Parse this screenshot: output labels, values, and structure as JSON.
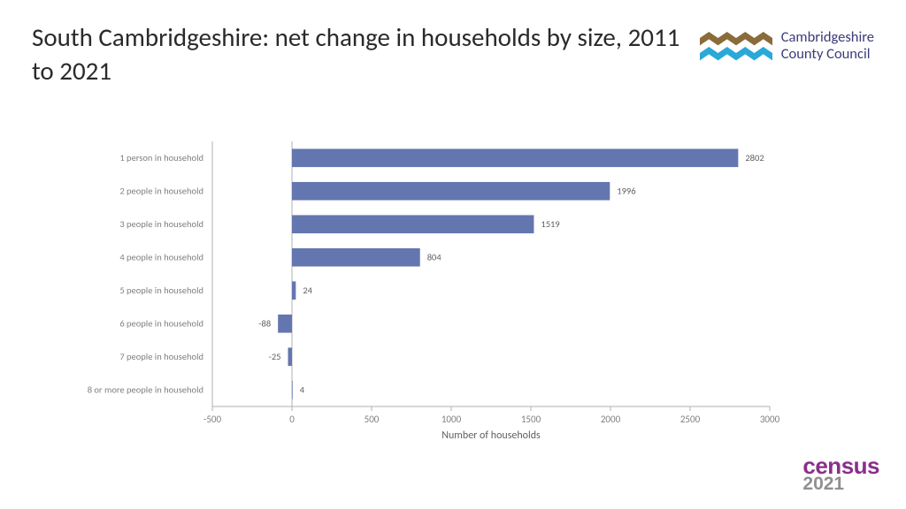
{
  "title": "South Cambridgeshire: net change in households by size, 2011 to 2021",
  "logo": {
    "line1": "Cambridgeshire",
    "line2": "County Council",
    "top_color": "#8a6b3a",
    "bottom_color": "#2aa8d8"
  },
  "chart": {
    "type": "bar-horizontal",
    "categories": [
      "1 person in household",
      "2 people in household",
      "3 people in household",
      "4 people in household",
      "5 people in household",
      "6 people in household",
      "7 people in household",
      "8 or more people in household"
    ],
    "values": [
      2802,
      1996,
      1519,
      804,
      24,
      -88,
      -25,
      4
    ],
    "bar_color": "#6476b0",
    "xlabel": "Number of households",
    "xlim": [
      -500,
      3000
    ],
    "xtick_step": 500,
    "tick_color": "#808080",
    "tick_fontsize": 11,
    "cat_fontsize": 10.5,
    "cat_color": "#808080",
    "xlabel_fontsize": 12,
    "xlabel_color": "#606060",
    "value_label_fontsize": 10.5,
    "value_label_color": "#606060",
    "axis_line_color": "#b0b0b0",
    "bar_height_ratio": 0.55
  },
  "census": {
    "word": "census",
    "year": "2021"
  }
}
